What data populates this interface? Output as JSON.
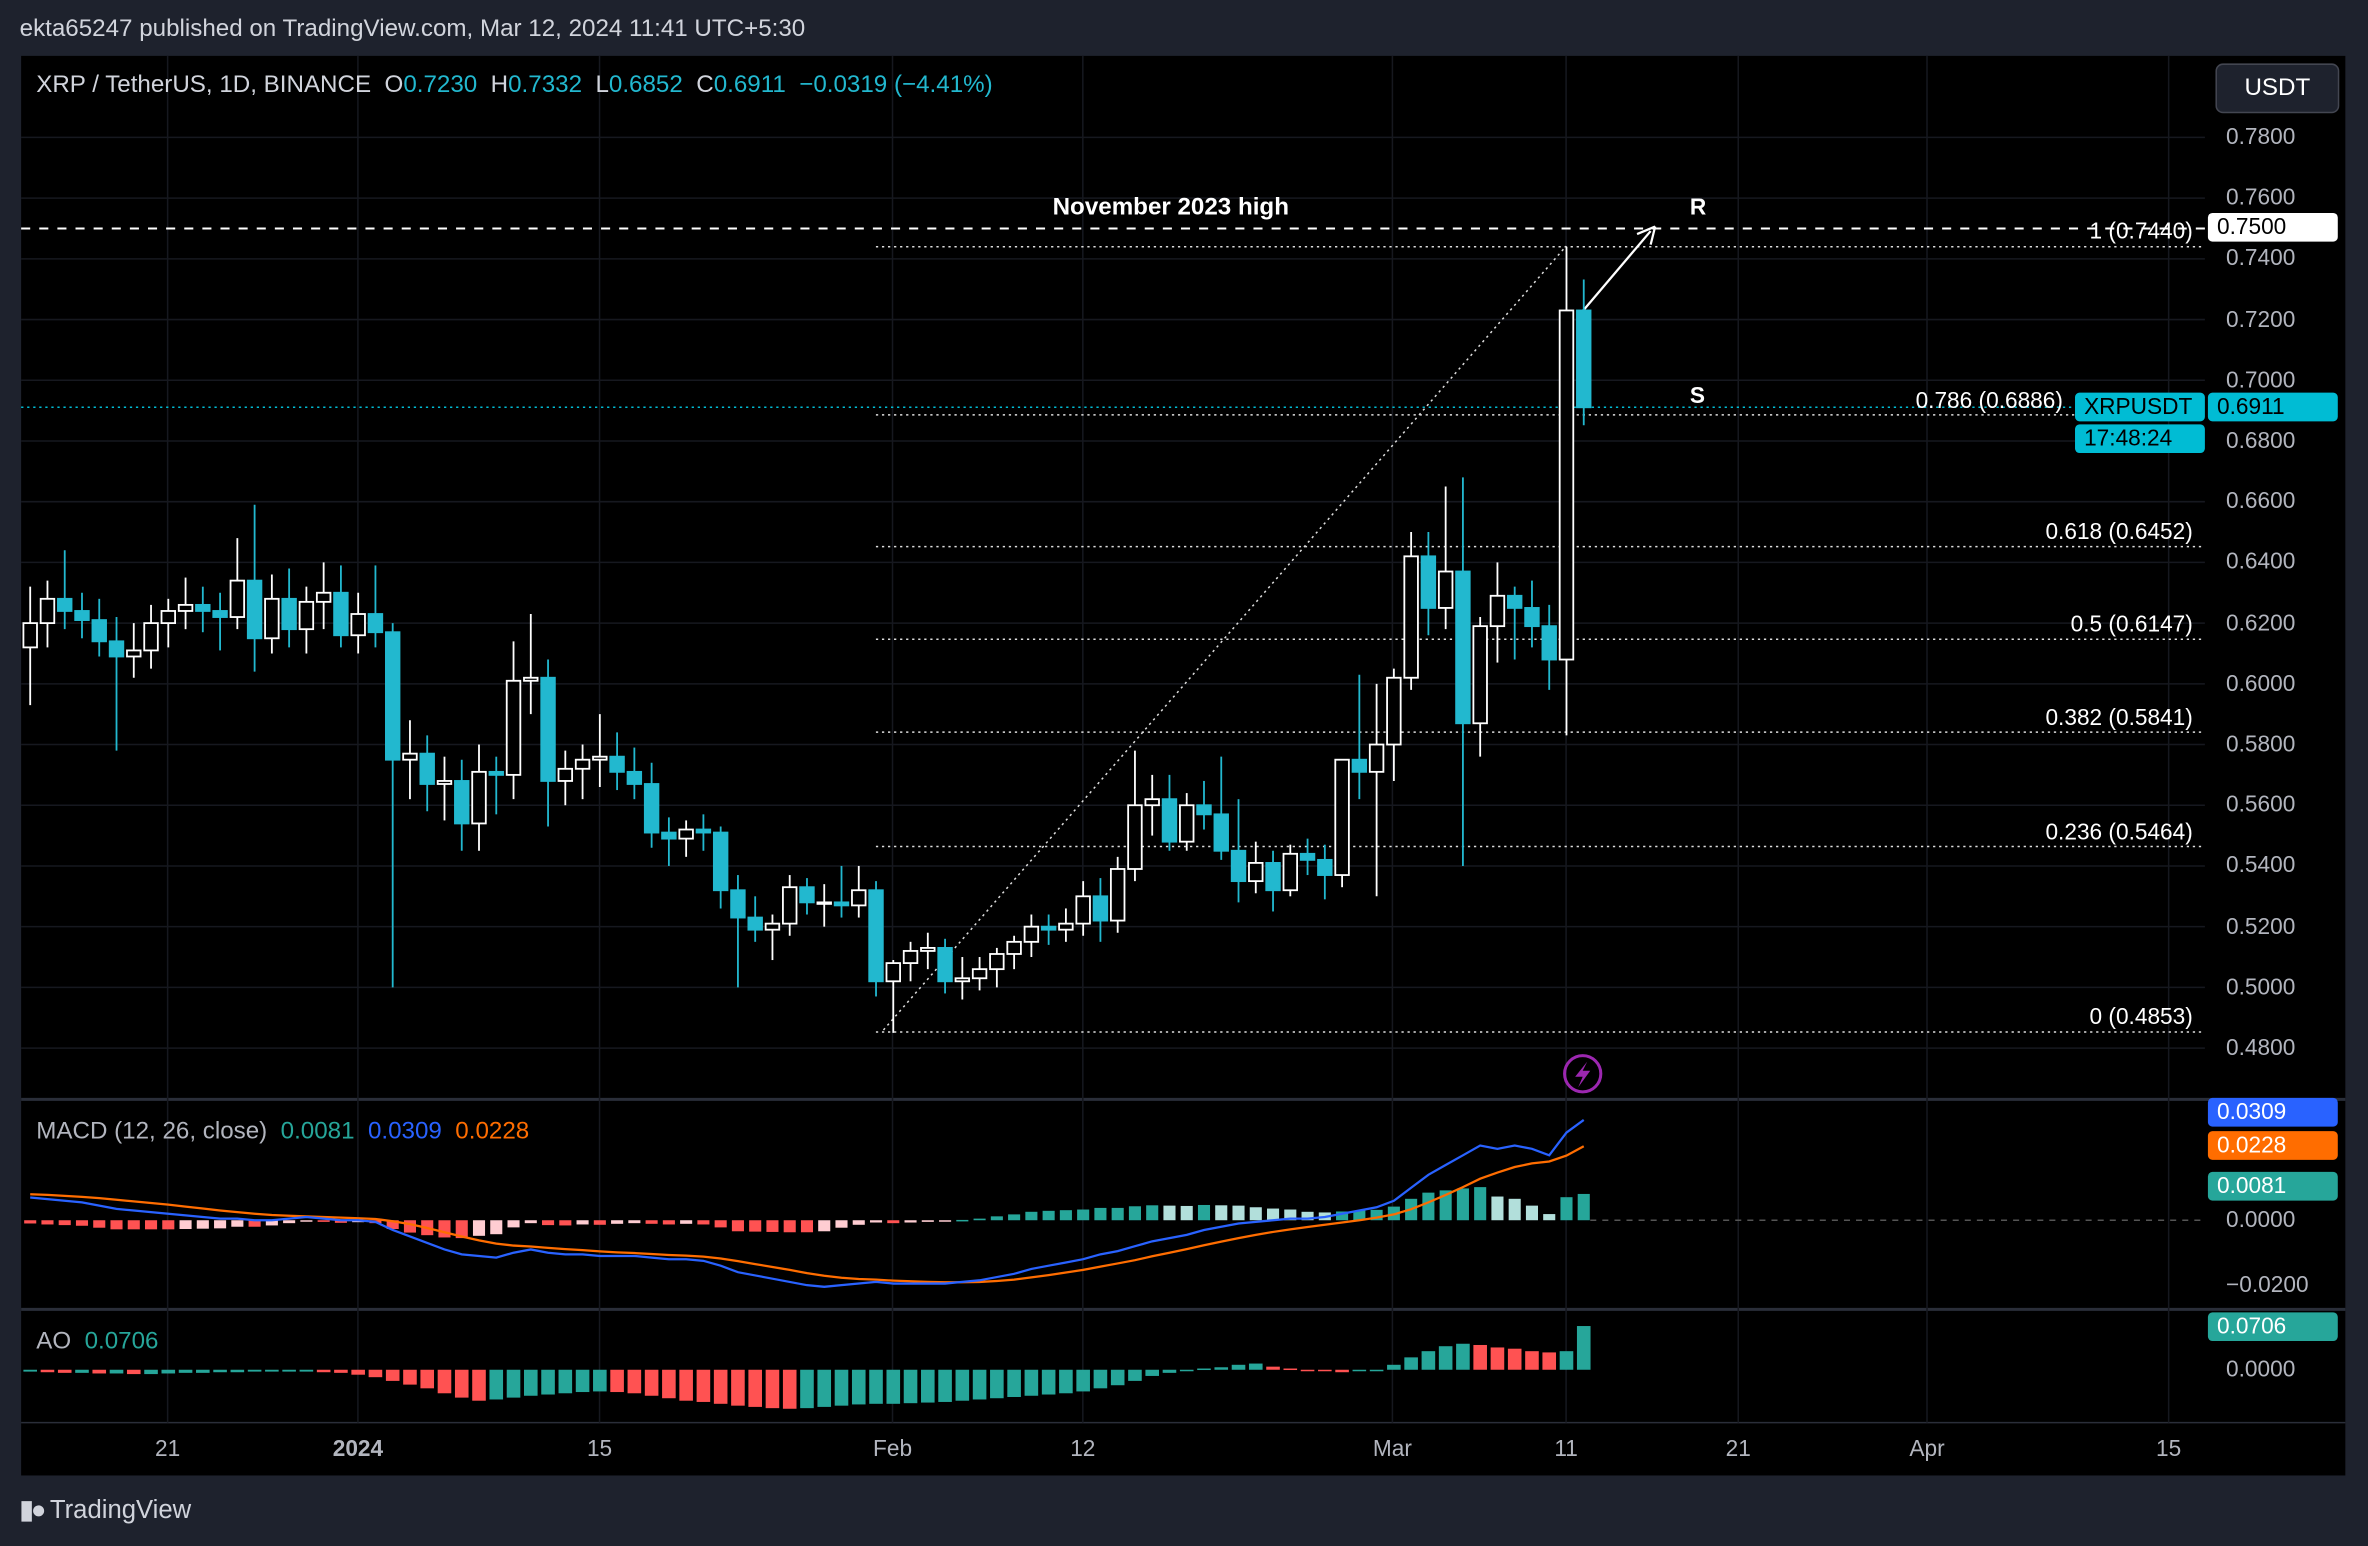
{
  "header": {
    "published": "ekta65247 published on TradingView.com, Mar 12, 2024 11:41 UTC+5:30"
  },
  "legend": {
    "symbol": "XRP / TetherUS, 1D, BINANCE",
    "o_label": "O",
    "o": "0.7230",
    "h_label": "H",
    "h": "0.7332",
    "l_label": "L",
    "l": "0.6852",
    "c_label": "C",
    "c": "0.6911",
    "change": "−0.0319 (−4.41%)"
  },
  "currency_button": "USDT",
  "annotations": {
    "nov_high": "November 2023 high",
    "r": "R",
    "s": "S",
    "nov_high_price": "0.7500"
  },
  "last_price": {
    "symbol": "XRPUSDT",
    "price": "0.6911",
    "countdown": "17:48:24"
  },
  "colors": {
    "up": "#ffffff",
    "down": "#22b8cf",
    "macd": "#2962ff",
    "signal": "#ff6d00",
    "hist_pos": "#26a69a",
    "hist_pos_fade": "#b2dfdb",
    "hist_neg": "#ff5252",
    "hist_neg_fade": "#ffcdd2",
    "last_price": "#00bcd4"
  },
  "footer": {
    "logo": "TradingView"
  },
  "chart_data": [
    {
      "type": "candlestick",
      "price_axis": {
        "ticks": [
          "0.7800",
          "0.7600",
          "0.7400",
          "0.7200",
          "0.7000",
          "0.6800",
          "0.6600",
          "0.6400",
          "0.6200",
          "0.6000",
          "0.5800",
          "0.5600",
          "0.5400",
          "0.5200",
          "0.5000",
          "0.4800"
        ],
        "range": [
          0.47,
          0.795
        ]
      },
      "time_axis": {
        "ticks": [
          "21",
          "2024",
          "15",
          "Feb",
          "12",
          "Mar",
          "11",
          "21",
          "Apr",
          "15"
        ]
      },
      "fib_levels": [
        {
          "label": "1 (0.7440)",
          "price": 0.744
        },
        {
          "label": "0.786 (0.6886)",
          "price": 0.6886
        },
        {
          "label": "0.618 (0.6452)",
          "price": 0.6452
        },
        {
          "label": "0.5 (0.6147)",
          "price": 0.6147
        },
        {
          "label": "0.382 (0.5841)",
          "price": 0.5841
        },
        {
          "label": "0.236 (0.5464)",
          "price": 0.5464
        },
        {
          "label": "0 (0.4853)",
          "price": 0.4853
        }
      ],
      "resistance_price": 0.75,
      "candles": [
        [
          "2023-12-13",
          0.612,
          0.632,
          0.593,
          0.62
        ],
        [
          "2023-12-14",
          0.62,
          0.634,
          0.612,
          0.628
        ],
        [
          "2023-12-15",
          0.628,
          0.644,
          0.618,
          0.624
        ],
        [
          "2023-12-16",
          0.624,
          0.63,
          0.615,
          0.621
        ],
        [
          "2023-12-17",
          0.621,
          0.628,
          0.609,
          0.614
        ],
        [
          "2023-12-18",
          0.614,
          0.622,
          0.578,
          0.609
        ],
        [
          "2023-12-19",
          0.609,
          0.62,
          0.602,
          0.611
        ],
        [
          "2023-12-20",
          0.611,
          0.626,
          0.605,
          0.62
        ],
        [
          "2023-12-21",
          0.62,
          0.628,
          0.612,
          0.624
        ],
        [
          "2023-12-22",
          0.624,
          0.635,
          0.618,
          0.626
        ],
        [
          "2023-12-23",
          0.626,
          0.632,
          0.617,
          0.624
        ],
        [
          "2023-12-24",
          0.624,
          0.63,
          0.611,
          0.622
        ],
        [
          "2023-12-25",
          0.622,
          0.648,
          0.618,
          0.634
        ],
        [
          "2023-12-26",
          0.634,
          0.659,
          0.604,
          0.615
        ],
        [
          "2023-12-27",
          0.615,
          0.636,
          0.61,
          0.628
        ],
        [
          "2023-12-28",
          0.628,
          0.638,
          0.612,
          0.618
        ],
        [
          "2023-12-29",
          0.618,
          0.632,
          0.61,
          0.627
        ],
        [
          "2023-12-30",
          0.627,
          0.64,
          0.618,
          0.63
        ],
        [
          "2023-12-31",
          0.63,
          0.639,
          0.612,
          0.616
        ],
        [
          "2024-01-01",
          0.616,
          0.63,
          0.61,
          0.623
        ],
        [
          "2024-01-02",
          0.623,
          0.639,
          0.612,
          0.617
        ],
        [
          "2024-01-03",
          0.617,
          0.62,
          0.5,
          0.575
        ],
        [
          "2024-01-04",
          0.575,
          0.588,
          0.562,
          0.577
        ],
        [
          "2024-01-05",
          0.577,
          0.583,
          0.558,
          0.567
        ],
        [
          "2024-01-06",
          0.567,
          0.576,
          0.555,
          0.568
        ],
        [
          "2024-01-07",
          0.568,
          0.575,
          0.545,
          0.554
        ],
        [
          "2024-01-08",
          0.554,
          0.58,
          0.545,
          0.571
        ],
        [
          "2024-01-09",
          0.571,
          0.576,
          0.557,
          0.57
        ],
        [
          "2024-01-10",
          0.57,
          0.614,
          0.562,
          0.601
        ],
        [
          "2024-01-11",
          0.601,
          0.623,
          0.59,
          0.602
        ],
        [
          "2024-01-12",
          0.602,
          0.608,
          0.553,
          0.568
        ],
        [
          "2024-01-13",
          0.568,
          0.578,
          0.56,
          0.572
        ],
        [
          "2024-01-14",
          0.572,
          0.58,
          0.562,
          0.575
        ],
        [
          "2024-01-15",
          0.575,
          0.59,
          0.566,
          0.576
        ],
        [
          "2024-01-16",
          0.576,
          0.584,
          0.565,
          0.571
        ],
        [
          "2024-01-17",
          0.571,
          0.579,
          0.562,
          0.567
        ],
        [
          "2024-01-18",
          0.567,
          0.574,
          0.546,
          0.551
        ],
        [
          "2024-01-19",
          0.551,
          0.556,
          0.54,
          0.549
        ],
        [
          "2024-01-20",
          0.549,
          0.555,
          0.543,
          0.552
        ],
        [
          "2024-01-21",
          0.552,
          0.557,
          0.545,
          0.551
        ],
        [
          "2024-01-22",
          0.551,
          0.553,
          0.526,
          0.532
        ],
        [
          "2024-01-23",
          0.532,
          0.537,
          0.5,
          0.523
        ],
        [
          "2024-01-24",
          0.523,
          0.53,
          0.515,
          0.519
        ],
        [
          "2024-01-25",
          0.519,
          0.524,
          0.509,
          0.521
        ],
        [
          "2024-01-26",
          0.521,
          0.537,
          0.517,
          0.533
        ],
        [
          "2024-01-27",
          0.533,
          0.536,
          0.524,
          0.528
        ],
        [
          "2024-01-28",
          0.528,
          0.534,
          0.52,
          0.528
        ],
        [
          "2024-01-29",
          0.528,
          0.54,
          0.523,
          0.527
        ],
        [
          "2024-01-30",
          0.527,
          0.54,
          0.523,
          0.532
        ],
        [
          "2024-01-31",
          0.532,
          0.535,
          0.497,
          0.502
        ],
        [
          "2024-02-01",
          0.502,
          0.509,
          0.485,
          0.508
        ],
        [
          "2024-02-02",
          0.508,
          0.515,
          0.502,
          0.512
        ],
        [
          "2024-02-03",
          0.512,
          0.518,
          0.506,
          0.513
        ],
        [
          "2024-02-04",
          0.513,
          0.516,
          0.498,
          0.502
        ],
        [
          "2024-02-05",
          0.502,
          0.51,
          0.496,
          0.503
        ],
        [
          "2024-02-06",
          0.503,
          0.51,
          0.499,
          0.506
        ],
        [
          "2024-02-07",
          0.506,
          0.513,
          0.5,
          0.511
        ],
        [
          "2024-02-08",
          0.511,
          0.517,
          0.506,
          0.515
        ],
        [
          "2024-02-09",
          0.515,
          0.524,
          0.51,
          0.52
        ],
        [
          "2024-02-10",
          0.52,
          0.524,
          0.514,
          0.519
        ],
        [
          "2024-02-11",
          0.519,
          0.526,
          0.515,
          0.521
        ],
        [
          "2024-02-12",
          0.521,
          0.535,
          0.517,
          0.53
        ],
        [
          "2024-02-13",
          0.53,
          0.536,
          0.515,
          0.522
        ],
        [
          "2024-02-14",
          0.522,
          0.543,
          0.518,
          0.539
        ],
        [
          "2024-02-15",
          0.539,
          0.578,
          0.535,
          0.56
        ],
        [
          "2024-02-16",
          0.56,
          0.57,
          0.55,
          0.562
        ],
        [
          "2024-02-17",
          0.562,
          0.57,
          0.545,
          0.548
        ],
        [
          "2024-02-18",
          0.548,
          0.564,
          0.545,
          0.56
        ],
        [
          "2024-02-19",
          0.56,
          0.568,
          0.552,
          0.557
        ],
        [
          "2024-02-20",
          0.557,
          0.576,
          0.542,
          0.545
        ],
        [
          "2024-02-21",
          0.545,
          0.562,
          0.528,
          0.535
        ],
        [
          "2024-02-22",
          0.535,
          0.548,
          0.531,
          0.541
        ],
        [
          "2024-02-23",
          0.541,
          0.545,
          0.525,
          0.532
        ],
        [
          "2024-02-24",
          0.532,
          0.547,
          0.53,
          0.544
        ],
        [
          "2024-02-25",
          0.544,
          0.549,
          0.537,
          0.542
        ],
        [
          "2024-02-26",
          0.542,
          0.547,
          0.529,
          0.537
        ],
        [
          "2024-02-27",
          0.537,
          0.575,
          0.533,
          0.575
        ],
        [
          "2024-02-28",
          0.575,
          0.603,
          0.562,
          0.571
        ],
        [
          "2024-02-29",
          0.571,
          0.6,
          0.53,
          0.58
        ],
        [
          "2024-03-01",
          0.58,
          0.605,
          0.568,
          0.602
        ],
        [
          "2024-03-02",
          0.602,
          0.65,
          0.598,
          0.642
        ],
        [
          "2024-03-03",
          0.642,
          0.65,
          0.616,
          0.625
        ],
        [
          "2024-03-04",
          0.625,
          0.665,
          0.618,
          0.637
        ],
        [
          "2024-03-05",
          0.637,
          0.668,
          0.54,
          0.587
        ],
        [
          "2024-03-06",
          0.587,
          0.622,
          0.576,
          0.619
        ],
        [
          "2024-03-07",
          0.619,
          0.64,
          0.607,
          0.629
        ],
        [
          "2024-03-08",
          0.629,
          0.632,
          0.608,
          0.625
        ],
        [
          "2024-03-09",
          0.625,
          0.634,
          0.612,
          0.619
        ],
        [
          "2024-03-10",
          0.619,
          0.626,
          0.598,
          0.608
        ],
        [
          "2024-03-11",
          0.608,
          0.744,
          0.583,
          0.723
        ],
        [
          "2024-03-12",
          0.723,
          0.7332,
          0.6852,
          0.6911
        ]
      ]
    },
    {
      "type": "line",
      "title": "MACD (12, 26, close)",
      "values_shown": {
        "histogram": "0.0081",
        "macd": "0.0309",
        "signal": "0.0228"
      },
      "axis_ticks": [
        "0.0000",
        "−0.0200"
      ],
      "unit_scale": 0.001,
      "macd": [
        7,
        6.5,
        6,
        5.5,
        4.5,
        3.5,
        3,
        2.5,
        2,
        1.5,
        1,
        0.5,
        0.5,
        0,
        0,
        0.5,
        1,
        0.5,
        0,
        0,
        -0.5,
        -3,
        -5,
        -7,
        -9,
        -10.5,
        -11,
        -11.5,
        -10,
        -9,
        -10,
        -10.5,
        -10.5,
        -11,
        -11,
        -11,
        -11.5,
        -12,
        -12,
        -12.5,
        -14,
        -16,
        -17,
        -18,
        -19,
        -20,
        -20.5,
        -20,
        -19.5,
        -19,
        -19.5,
        -19.5,
        -19.5,
        -19.5,
        -19,
        -18.5,
        -17.5,
        -16.5,
        -15,
        -14,
        -13,
        -12,
        -10.5,
        -9.5,
        -8,
        -6.5,
        -5.5,
        -4.5,
        -3,
        -2,
        -1,
        -0.5,
        0,
        0.5,
        0.5,
        1,
        2,
        3,
        4,
        6,
        10,
        14,
        17,
        20,
        23,
        22,
        23,
        22,
        20,
        27,
        30.9
      ],
      "signal": [
        8,
        7.8,
        7.5,
        7.2,
        6.8,
        6.3,
        5.8,
        5.3,
        4.8,
        4.2,
        3.6,
        3,
        2.5,
        2,
        1.6,
        1.4,
        1.2,
        1,
        0.8,
        0.6,
        0.4,
        -0.3,
        -1.2,
        -2.4,
        -3.7,
        -5,
        -6.2,
        -7.2,
        -7.8,
        -8.1,
        -8.5,
        -8.9,
        -9.2,
        -9.6,
        -9.9,
        -10.1,
        -10.4,
        -10.7,
        -10.9,
        -11.2,
        -11.8,
        -12.6,
        -13.5,
        -14.4,
        -15.3,
        -16.3,
        -17.1,
        -17.7,
        -18.1,
        -18.3,
        -18.6,
        -18.8,
        -19,
        -19.1,
        -19.1,
        -19,
        -18.7,
        -18.3,
        -17.6,
        -16.9,
        -16.1,
        -15.3,
        -14.3,
        -13.3,
        -12.3,
        -11.1,
        -10,
        -8.9,
        -7.7,
        -6.6,
        -5.5,
        -4.5,
        -3.6,
        -2.8,
        -2.1,
        -1.4,
        -0.7,
        0,
        0.8,
        1.8,
        3.4,
        5.5,
        7.8,
        10.2,
        12.8,
        14.7,
        16.4,
        17.5,
        18.1,
        19.9,
        22.8
      ]
    },
    {
      "type": "bar",
      "title": "AO",
      "value_shown": "0.0706",
      "axis_ticks": [
        "0.0000"
      ],
      "unit_scale": 0.001,
      "values": [
        -3,
        -4,
        -5,
        -5,
        -6,
        -6,
        -7,
        -7,
        -6,
        -5,
        -5,
        -4,
        -4,
        -3,
        -3,
        -3,
        -3,
        -4,
        -5,
        -8,
        -12,
        -18,
        -24,
        -30,
        -38,
        -45,
        -50,
        -48,
        -45,
        -42,
        -40,
        -38,
        -36,
        -35,
        -36,
        -38,
        -42,
        -46,
        -50,
        -52,
        -55,
        -58,
        -60,
        -62,
        -63,
        -62,
        -60,
        -58,
        -56,
        -55,
        -55,
        -54,
        -53,
        -52,
        -50,
        -48,
        -46,
        -44,
        -42,
        -40,
        -38,
        -35,
        -30,
        -25,
        -18,
        -10,
        -5,
        0,
        2,
        4,
        8,
        10,
        5,
        2,
        0,
        -2,
        -4,
        -2,
        0,
        8,
        20,
        30,
        38,
        42,
        40,
        36,
        34,
        30,
        28,
        30,
        70.6
      ]
    }
  ]
}
